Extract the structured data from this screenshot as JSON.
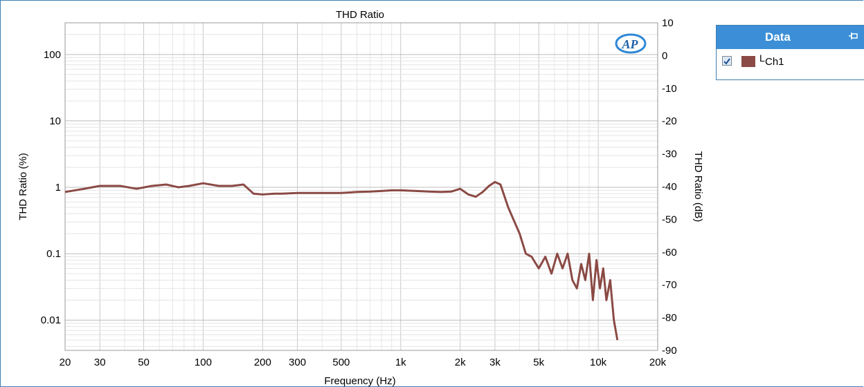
{
  "chart_data": {
    "type": "line",
    "title": "THD Ratio",
    "xlabel": "Frequency (Hz)",
    "ylabel": "THD Ratio (%)",
    "ylabel_right": "THD Ratio (dB)",
    "x_scale": "log",
    "y_scale": "log",
    "xlim": [
      20,
      20000
    ],
    "ylim": [
      0.0035,
      300
    ],
    "ylim_right": [
      -90,
      10
    ],
    "grid": true,
    "x_ticks": [
      {
        "value": 20,
        "label": "20"
      },
      {
        "value": 30,
        "label": "30"
      },
      {
        "value": 50,
        "label": "50"
      },
      {
        "value": 100,
        "label": "100"
      },
      {
        "value": 200,
        "label": "200"
      },
      {
        "value": 300,
        "label": "300"
      },
      {
        "value": 500,
        "label": "500"
      },
      {
        "value": 1000,
        "label": "1k"
      },
      {
        "value": 2000,
        "label": "2k"
      },
      {
        "value": 3000,
        "label": "3k"
      },
      {
        "value": 5000,
        "label": "5k"
      },
      {
        "value": 10000,
        "label": "10k"
      },
      {
        "value": 20000,
        "label": "20k"
      }
    ],
    "y_ticks": [
      {
        "value": 100,
        "label": "100"
      },
      {
        "value": 10,
        "label": "10"
      },
      {
        "value": 1,
        "label": "1"
      },
      {
        "value": 0.1,
        "label": "0.1"
      },
      {
        "value": 0.01,
        "label": "0.01"
      }
    ],
    "y_ticks_right": [
      "10",
      "0",
      "-10",
      "-20",
      "-30",
      "-40",
      "-50",
      "-60",
      "-70",
      "-80",
      "-90"
    ],
    "series": [
      {
        "name": "Ch1",
        "color": "#8b4a45",
        "x": [
          20,
          25,
          30,
          38,
          46,
          55,
          65,
          75,
          85,
          100,
          120,
          140,
          160,
          180,
          200,
          230,
          250,
          300,
          400,
          500,
          600,
          700,
          800,
          900,
          1000,
          1200,
          1400,
          1600,
          1800,
          2000,
          2200,
          2400,
          2600,
          2800,
          3000,
          3200,
          3500,
          4000,
          4300,
          4600,
          5000,
          5400,
          5800,
          6200,
          6600,
          7000,
          7400,
          7800,
          8200,
          8600,
          9000,
          9400,
          9800,
          10200,
          10600,
          11000,
          11500,
          12000,
          12500
        ],
        "y": [
          0.85,
          0.95,
          1.05,
          1.05,
          0.95,
          1.05,
          1.1,
          1.0,
          1.05,
          1.15,
          1.05,
          1.05,
          1.1,
          0.8,
          0.78,
          0.8,
          0.8,
          0.82,
          0.82,
          0.82,
          0.85,
          0.86,
          0.88,
          0.9,
          0.9,
          0.88,
          0.86,
          0.85,
          0.86,
          0.95,
          0.78,
          0.72,
          0.85,
          1.05,
          1.2,
          1.1,
          0.5,
          0.2,
          0.1,
          0.09,
          0.06,
          0.09,
          0.05,
          0.1,
          0.06,
          0.1,
          0.04,
          0.03,
          0.07,
          0.04,
          0.1,
          0.02,
          0.08,
          0.03,
          0.06,
          0.02,
          0.04,
          0.01,
          0.005
        ]
      }
    ]
  },
  "logo": {
    "text": "AP"
  },
  "legend": {
    "title": "Data",
    "items": [
      {
        "label": "Ch1",
        "channel_mark": "L",
        "color": "#8b4a45",
        "checked": true
      }
    ]
  }
}
